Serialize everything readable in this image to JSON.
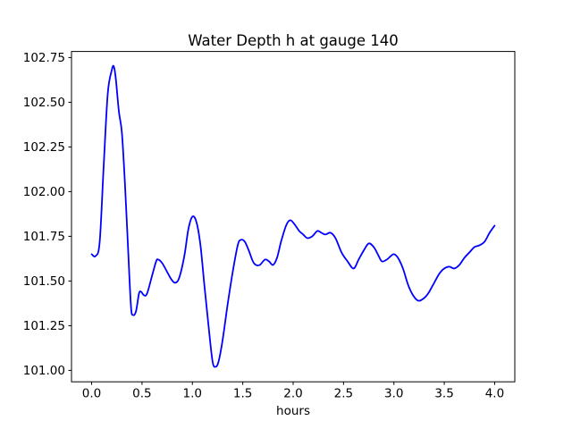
{
  "figure": {
    "title": "Water Depth h at gauge 140",
    "xlabel": "hours"
  },
  "colors": {
    "line": "#0000ff",
    "spine": "#000000",
    "text": "#000000",
    "background": "#ffffff"
  },
  "chart_data": {
    "type": "line",
    "title": "Water Depth h at gauge 140",
    "xlabel": "hours",
    "ylabel": "",
    "grid": false,
    "legend": null,
    "xlim": [
      -0.2,
      4.2
    ],
    "ylim": [
      100.936,
      102.784
    ],
    "x_ticks": [
      0.0,
      0.5,
      1.0,
      1.5,
      2.0,
      2.5,
      3.0,
      3.5,
      4.0
    ],
    "x_tick_labels": [
      "0.0",
      "0.5",
      "1.0",
      "1.5",
      "2.0",
      "2.5",
      "3.0",
      "3.5",
      "4.0"
    ],
    "y_ticks": [
      101.0,
      101.25,
      101.5,
      101.75,
      102.0,
      102.25,
      102.5,
      102.75
    ],
    "y_tick_labels": [
      "101.00",
      "101.25",
      "101.50",
      "101.75",
      "102.00",
      "102.25",
      "102.50",
      "102.75"
    ],
    "series": [
      {
        "name": "water-depth-h",
        "color": "#0000ff",
        "linewidth": 1.8,
        "x": [
          0.0,
          0.04,
          0.08,
          0.12,
          0.16,
          0.2,
          0.22,
          0.24,
          0.27,
          0.3,
          0.33,
          0.36,
          0.39,
          0.41,
          0.44,
          0.47,
          0.49,
          0.52,
          0.55,
          0.6,
          0.64,
          0.66,
          0.7,
          0.75,
          0.79,
          0.83,
          0.87,
          0.92,
          0.96,
          1.0,
          1.04,
          1.08,
          1.12,
          1.16,
          1.2,
          1.23,
          1.26,
          1.3,
          1.35,
          1.4,
          1.45,
          1.48,
          1.52,
          1.56,
          1.6,
          1.63,
          1.67,
          1.72,
          1.76,
          1.8,
          1.84,
          1.88,
          1.93,
          1.97,
          2.01,
          2.06,
          2.1,
          2.14,
          2.19,
          2.24,
          2.28,
          2.32,
          2.37,
          2.42,
          2.48,
          2.54,
          2.6,
          2.65,
          2.7,
          2.75,
          2.8,
          2.84,
          2.88,
          2.93,
          2.97,
          3.0,
          3.04,
          3.09,
          3.14,
          3.19,
          3.24,
          3.29,
          3.34,
          3.4,
          3.45,
          3.5,
          3.55,
          3.6,
          3.65,
          3.7,
          3.75,
          3.8,
          3.85,
          3.9,
          3.95,
          4.0
        ],
        "y": [
          101.65,
          101.64,
          101.72,
          102.15,
          102.55,
          102.68,
          102.7,
          102.63,
          102.45,
          102.33,
          102.05,
          101.7,
          101.36,
          101.31,
          101.33,
          101.43,
          101.44,
          101.42,
          101.43,
          101.53,
          101.61,
          101.62,
          101.6,
          101.55,
          101.51,
          101.49,
          101.52,
          101.64,
          101.79,
          101.86,
          101.83,
          101.7,
          101.47,
          101.25,
          101.05,
          101.02,
          101.05,
          101.17,
          101.37,
          101.55,
          101.7,
          101.73,
          101.72,
          101.67,
          101.61,
          101.59,
          101.59,
          101.62,
          101.61,
          101.59,
          101.63,
          101.72,
          101.81,
          101.84,
          101.82,
          101.78,
          101.76,
          101.74,
          101.75,
          101.78,
          101.77,
          101.76,
          101.77,
          101.74,
          101.66,
          101.61,
          101.57,
          101.62,
          101.67,
          101.71,
          101.69,
          101.65,
          101.61,
          101.62,
          101.64,
          101.65,
          101.63,
          101.57,
          101.48,
          101.42,
          101.39,
          101.4,
          101.43,
          101.49,
          101.54,
          101.57,
          101.58,
          101.57,
          101.59,
          101.63,
          101.66,
          101.69,
          101.7,
          101.72,
          101.77,
          101.81
        ]
      }
    ]
  }
}
